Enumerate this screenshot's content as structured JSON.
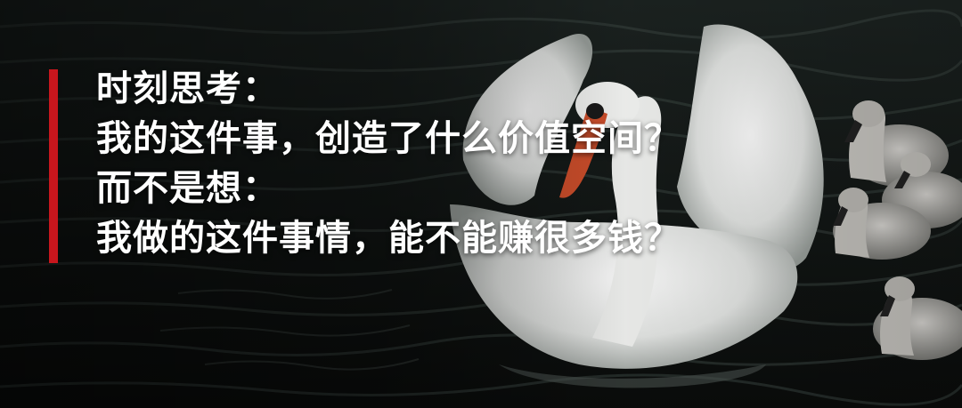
{
  "lines": {
    "line1": "时刻思考：",
    "line2": "我的这件事，创造了什么价值空间？",
    "line3": "而不是想：",
    "line4": "我做的这件事情，能不能赚很多钱？"
  },
  "colors": {
    "accent_bar": "#c8161d",
    "text": "#ffffff",
    "water": "#151a18"
  }
}
